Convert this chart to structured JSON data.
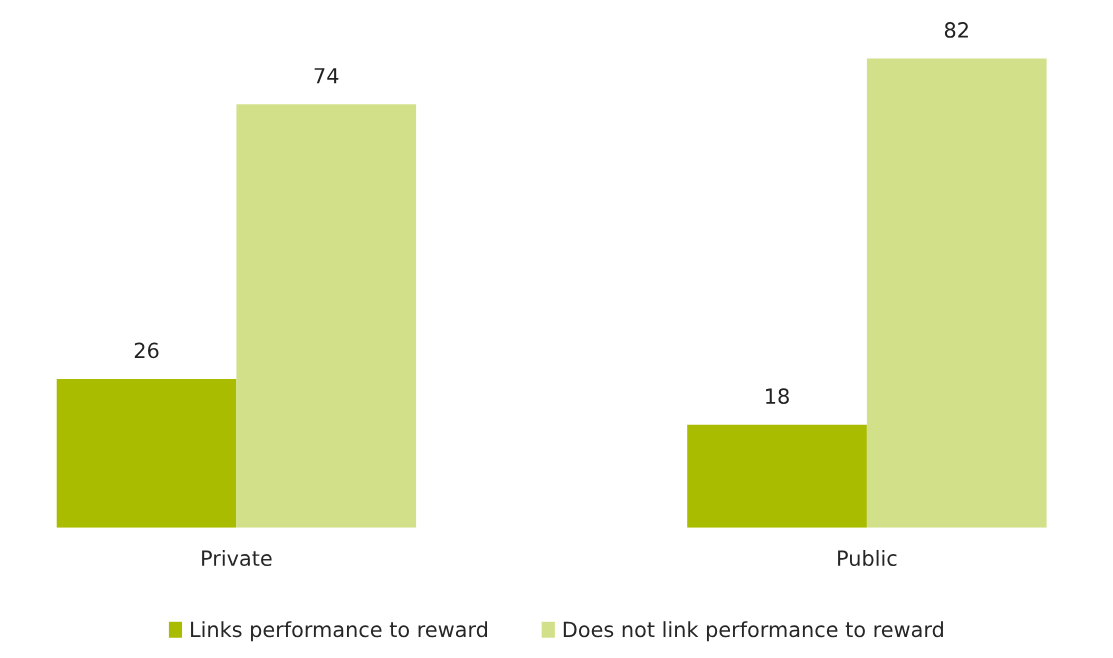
{
  "chart_data": {
    "type": "bar",
    "categories": [
      "Private",
      "Public"
    ],
    "series": [
      {
        "name": "Links performance to reward",
        "color": "#a9bc00",
        "values": [
          26,
          18
        ]
      },
      {
        "name": "Does not link performance to reward",
        "color": "#d3e08a",
        "values": [
          74,
          82
        ]
      }
    ],
    "data_labels": true,
    "legend": "bottom",
    "tick_labels": "x",
    "grid": false
  }
}
